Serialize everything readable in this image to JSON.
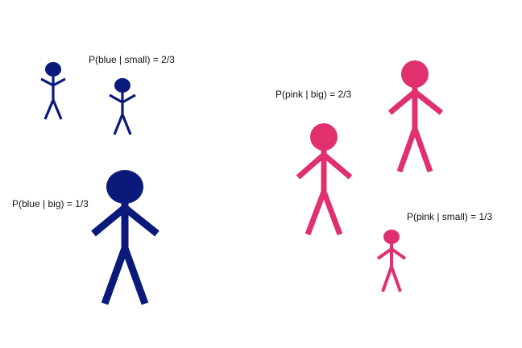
{
  "colors": {
    "blue": "#0b1a7a",
    "pink": "#e0306e",
    "text": "#111111",
    "background": "#ffffff"
  },
  "labels": {
    "blue_small": "P(blue | small) = 2/3",
    "blue_big": "P(blue | big) = 1/3",
    "pink_big": "P(pink | big) = 2/3",
    "pink_small": "P(pink | small) = 1/3"
  },
  "figures": [
    {
      "name": "blue-small-figure-1",
      "color": "blue",
      "size": "small"
    },
    {
      "name": "blue-small-figure-2",
      "color": "blue",
      "size": "small"
    },
    {
      "name": "blue-big-figure",
      "color": "blue",
      "size": "big"
    },
    {
      "name": "pink-big-figure-1",
      "color": "pink",
      "size": "big"
    },
    {
      "name": "pink-big-figure-2",
      "color": "pink",
      "size": "big"
    },
    {
      "name": "pink-small-figure",
      "color": "pink",
      "size": "small"
    }
  ]
}
